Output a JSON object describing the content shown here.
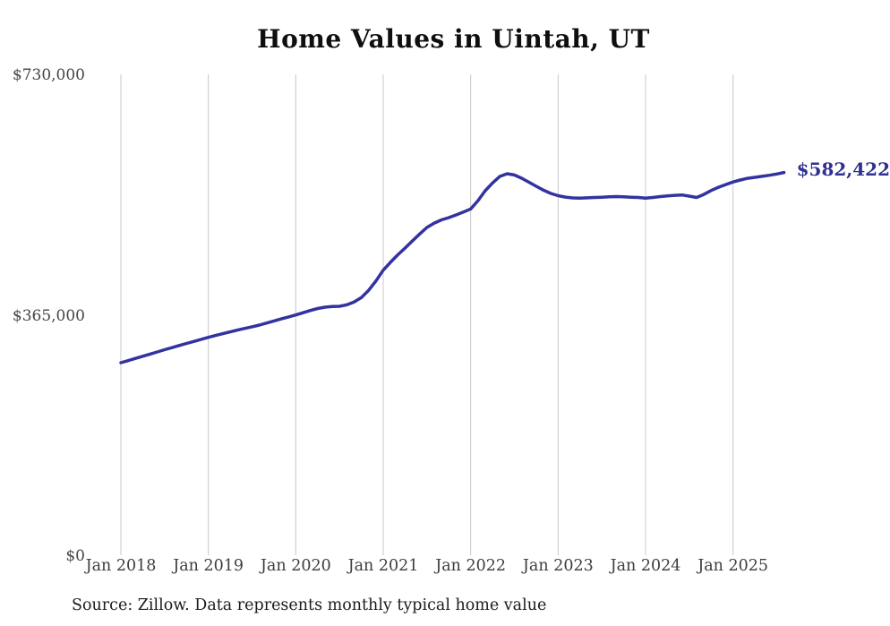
{
  "chart": {
    "title": "Home Values in Uintah, UT",
    "source": "Source: Zillow. Data represents monthly typical home value",
    "end_label": "$582,422"
  },
  "chart_data": {
    "type": "line",
    "title": "Home Values in Uintah, UT",
    "xlabel": "",
    "ylabel": "",
    "ylim": [
      0,
      730000
    ],
    "grid": "vertical-gridlines-only",
    "legend_position": "none",
    "line_color": "#3333a0",
    "end_label_color": "#2e3191",
    "gridline_color": "#c8c8c8",
    "y_ticks": [
      {
        "value": 0,
        "label": "$0"
      },
      {
        "value": 365000,
        "label": "$365,000"
      },
      {
        "value": 730000,
        "label": "$730,000"
      }
    ],
    "x_tick_labels": [
      "Jan 2018",
      "Jan 2019",
      "Jan 2020",
      "Jan 2021",
      "Jan 2022",
      "Jan 2023",
      "Jan 2024",
      "Jan 2025"
    ],
    "x_start_month": "2018-01",
    "x_end_month": "2025-08",
    "latest_value": 582422,
    "annotation": "$582,422",
    "series": [
      {
        "name": "Typical home value (monthly)",
        "monthly_values": [
          293600,
          296800,
          300100,
          303400,
          306700,
          310000,
          313300,
          316500,
          319700,
          322800,
          325900,
          329000,
          332100,
          334900,
          337700,
          340400,
          343100,
          345700,
          348200,
          350700,
          353800,
          357000,
          360100,
          363100,
          366100,
          369500,
          372900,
          375900,
          377900,
          379000,
          379300,
          381500,
          385800,
          392500,
          403500,
          417800,
          434100,
          446000,
          457500,
          467700,
          478500,
          489000,
          498900,
          505500,
          510500,
          513900,
          518000,
          522300,
          527000,
          539500,
          554600,
          566500,
          576400,
          580400,
          578500,
          573700,
          567500,
          561400,
          555500,
          550600,
          547200,
          545000,
          543800,
          543500,
          543900,
          544400,
          544900,
          545400,
          545800,
          545400,
          544900,
          544400,
          543300,
          544400,
          545800,
          546800,
          547700,
          548300,
          546500,
          544500,
          549000,
          555000,
          560000,
          564000,
          567900,
          571000,
          573500,
          575000,
          576500,
          578200,
          580000,
          582422
        ]
      }
    ]
  }
}
